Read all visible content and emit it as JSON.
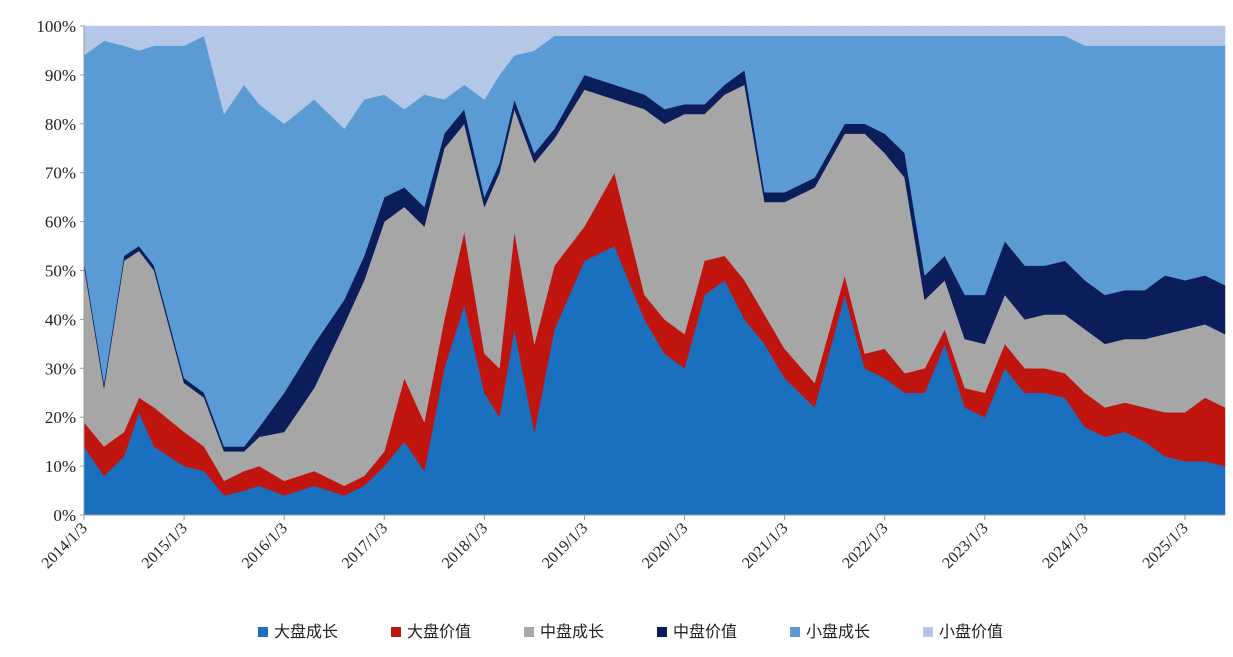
{
  "chart_data": {
    "type": "area",
    "stacked": true,
    "normalized": true,
    "title": "",
    "xlabel": "",
    "ylabel": "",
    "ylim": [
      0,
      100
    ],
    "y_ticks": [
      "0%",
      "10%",
      "20%",
      "30%",
      "40%",
      "50%",
      "60%",
      "70%",
      "80%",
      "90%",
      "100%"
    ],
    "x_ticks": [
      "2014/1/3",
      "2015/1/3",
      "2016/1/3",
      "2017/1/3",
      "2018/1/3",
      "2019/1/3",
      "2020/1/3",
      "2021/1/3",
      "2022/1/3",
      "2023/1/3",
      "2024/1/3",
      "2025/1/3"
    ],
    "x": [
      2014.0,
      2014.2,
      2014.4,
      2014.55,
      2014.7,
      2015.0,
      2015.2,
      2015.4,
      2015.6,
      2015.75,
      2016.0,
      2016.3,
      2016.6,
      2016.8,
      2017.0,
      2017.2,
      2017.4,
      2017.6,
      2017.8,
      2018.0,
      2018.15,
      2018.3,
      2018.5,
      2018.7,
      2019.0,
      2019.3,
      2019.6,
      2019.8,
      2020.0,
      2020.2,
      2020.4,
      2020.6,
      2020.8,
      2021.0,
      2021.3,
      2021.6,
      2021.8,
      2022.0,
      2022.2,
      2022.4,
      2022.6,
      2022.8,
      2023.0,
      2023.2,
      2023.4,
      2023.6,
      2023.8,
      2024.0,
      2024.2,
      2024.4,
      2024.6,
      2024.8,
      2025.0,
      2025.2,
      2025.4
    ],
    "series": [
      {
        "name": "大盘成长",
        "color": "#1a6fbf",
        "values": [
          14,
          8,
          12,
          21,
          14,
          10,
          9,
          4,
          5,
          6,
          4,
          6,
          4,
          6,
          10,
          15,
          9,
          30,
          43,
          25,
          20,
          38,
          17,
          38,
          52,
          55,
          40,
          33,
          30,
          45,
          48,
          40,
          35,
          28,
          22,
          45,
          30,
          28,
          25,
          25,
          35,
          22,
          20,
          30,
          25,
          25,
          24,
          18,
          16,
          17,
          15,
          12,
          11,
          11,
          10
        ]
      },
      {
        "name": "大盘价值",
        "color": "#c0140f",
        "values": [
          5,
          6,
          5,
          3,
          8,
          7,
          5,
          3,
          4,
          4,
          3,
          3,
          2,
          2,
          3,
          13,
          10,
          10,
          15,
          8,
          10,
          20,
          18,
          13,
          7,
          15,
          5,
          7,
          7,
          7,
          5,
          8,
          6,
          6,
          5,
          4,
          3,
          6,
          4,
          5,
          3,
          4,
          5,
          5,
          5,
          5,
          5,
          7,
          6,
          6,
          7,
          9,
          10,
          13,
          12
        ]
      },
      {
        "name": "中盘成长",
        "color": "#a6a6a6",
        "values": [
          32,
          12,
          35,
          30,
          28,
          10,
          10,
          6,
          4,
          6,
          10,
          17,
          33,
          40,
          47,
          35,
          40,
          35,
          22,
          30,
          40,
          25,
          37,
          26,
          28,
          15,
          38,
          40,
          45,
          30,
          33,
          40,
          23,
          30,
          40,
          29,
          45,
          40,
          40,
          14,
          10,
          10,
          10,
          10,
          10,
          11,
          12,
          13,
          13,
          13,
          14,
          16,
          17,
          15,
          15
        ]
      },
      {
        "name": "中盘价值",
        "color": "#0b1e5b",
        "values": [
          1,
          1,
          1,
          1,
          1,
          1,
          1,
          1,
          1,
          2,
          8,
          9,
          5,
          5,
          5,
          4,
          4,
          3,
          3,
          2,
          2,
          2,
          2,
          2,
          3,
          3,
          3,
          3,
          2,
          2,
          2,
          3,
          2,
          2,
          2,
          2,
          2,
          4,
          5,
          5,
          5,
          9,
          10,
          11,
          11,
          10,
          11,
          10,
          10,
          10,
          10,
          12,
          10,
          10,
          10
        ]
      },
      {
        "name": "小盘成长",
        "color": "#5b9bd5",
        "values": [
          42,
          70,
          43,
          40,
          45,
          68,
          73,
          68,
          74,
          66,
          55,
          50,
          35,
          32,
          21,
          16,
          23,
          7,
          5,
          20,
          18,
          9,
          21,
          19,
          8,
          10,
          12,
          15,
          14,
          14,
          10,
          7,
          32,
          32,
          29,
          18,
          18,
          20,
          24,
          49,
          45,
          53,
          53,
          42,
          47,
          47,
          46,
          48,
          51,
          50,
          50,
          47,
          48,
          47,
          49
        ]
      },
      {
        "name": "小盘价值",
        "color": "#b4c7e7",
        "values": [
          6,
          3,
          4,
          5,
          4,
          4,
          2,
          18,
          12,
          16,
          20,
          15,
          21,
          15,
          14,
          17,
          14,
          15,
          12,
          15,
          10,
          6,
          5,
          2,
          2,
          2,
          2,
          2,
          2,
          2,
          2,
          2,
          2,
          2,
          2,
          2,
          2,
          2,
          2,
          2,
          2,
          2,
          2,
          2,
          2,
          2,
          2,
          4,
          4,
          4,
          4,
          4,
          4,
          4,
          4
        ]
      }
    ],
    "legend": "bottom"
  }
}
